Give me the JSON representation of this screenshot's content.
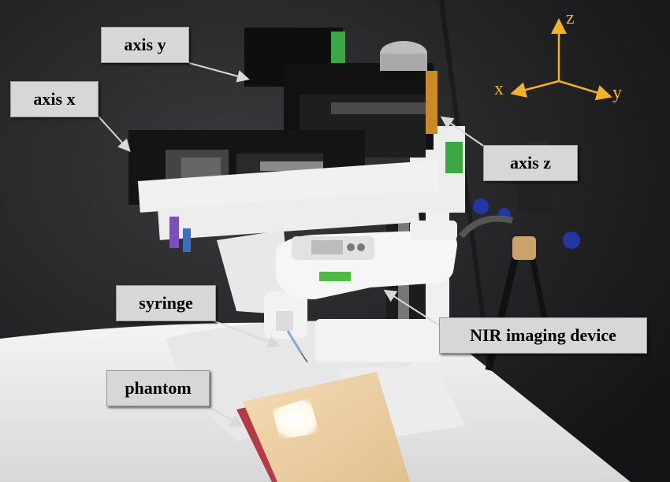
{
  "labels": {
    "axis_y": "axis y",
    "axis_x": "axis x",
    "axis_z": "axis z",
    "syringe": "syringe",
    "nir_device": "NIR imaging device",
    "phantom": "phantom"
  },
  "coordinate_frame": {
    "x": "x",
    "y": "y",
    "z": "z",
    "color": "#f3b12a"
  },
  "colors": {
    "label_background": "#d7d7d7",
    "arrow": "#d9d9d9",
    "backdrop": "#1a1a1c",
    "table": "#efefef"
  }
}
